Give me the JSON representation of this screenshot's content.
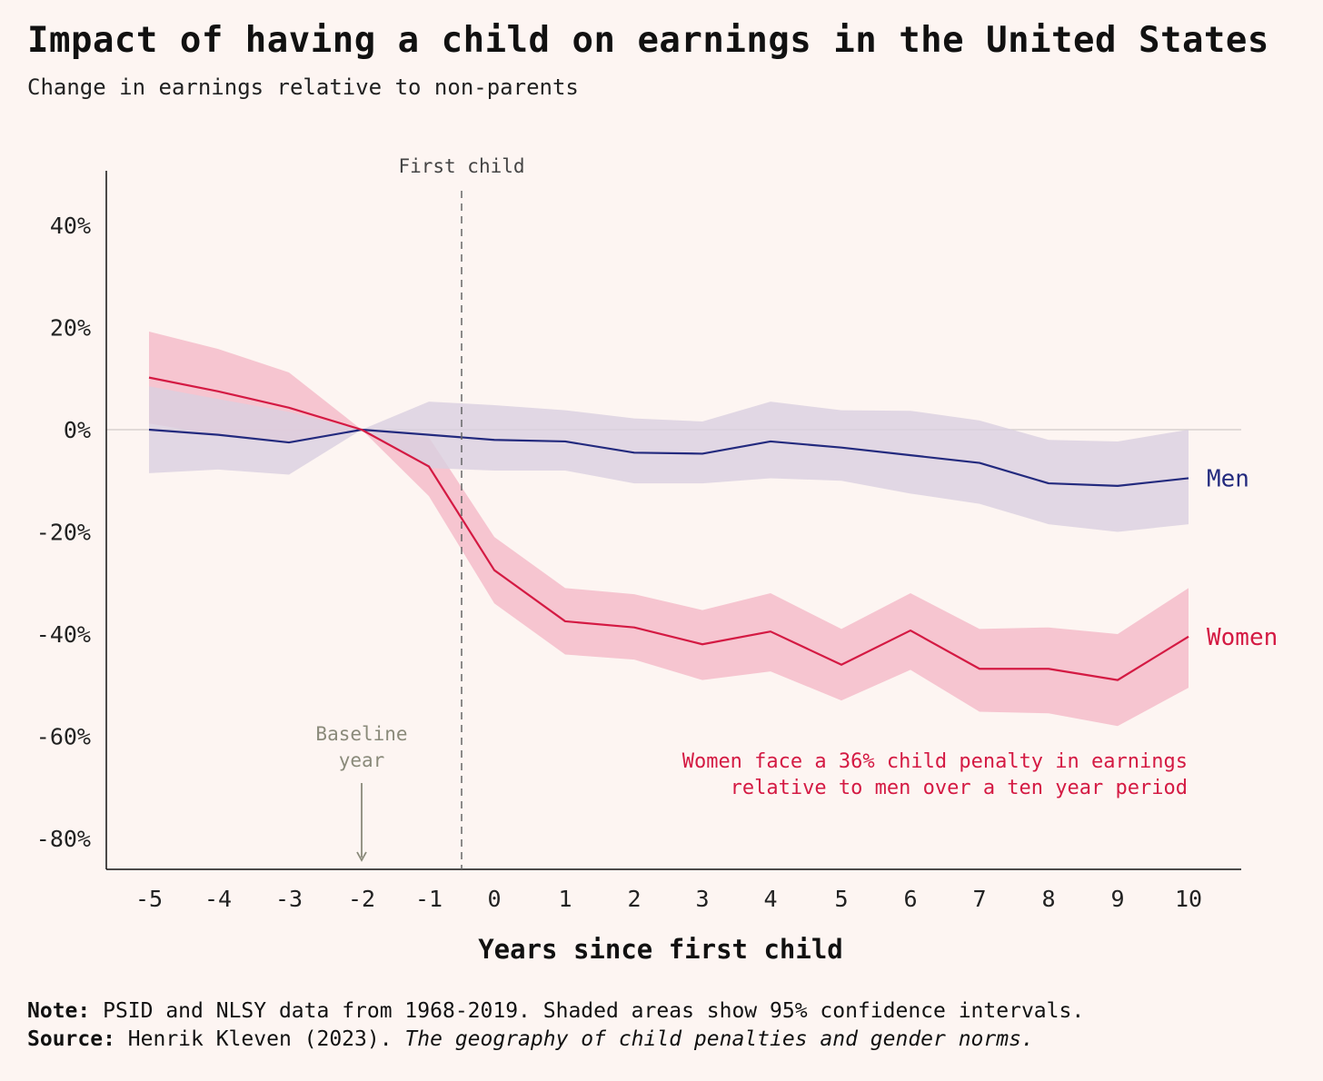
{
  "title": "Impact of having a child on earnings in the United States",
  "subtitle": "Change in earnings relative to non-parents",
  "colors": {
    "background": "#fdf5f2",
    "men_line": "#232a7e",
    "men_band": "#d9cfe0",
    "women_line": "#d41a43",
    "women_band": "#f6c2cd",
    "annotation_gray": "#8a8a7a"
  },
  "chart_data": {
    "type": "line",
    "xlabel": "Years since first child",
    "ylabel": "",
    "x": [
      -5,
      -4,
      -3,
      -2,
      -1,
      0,
      1,
      2,
      3,
      4,
      5,
      6,
      7,
      8,
      9,
      10
    ],
    "xticks": [
      "-5",
      "-4",
      "-3",
      "-2",
      "-1",
      "0",
      "1",
      "2",
      "3",
      "4",
      "5",
      "6",
      "7",
      "8",
      "9",
      "10"
    ],
    "yticks": [
      40,
      20,
      0,
      -20,
      -40,
      -60,
      -80
    ],
    "ytick_labels": [
      "40%",
      "20%",
      "0%",
      "-20%",
      "-40%",
      "-60%",
      "-80%"
    ],
    "ylim": [
      -85,
      50
    ],
    "series": [
      {
        "name": "Men",
        "values": [
          0,
          -1,
          -2.5,
          0,
          -1,
          -2,
          -2.3,
          -4.5,
          -4.7,
          -2.3,
          -3.5,
          -5,
          -6.5,
          -10.5,
          -11,
          -9.5
        ],
        "upper": [
          8.5,
          6,
          3.5,
          0,
          5.5,
          4.8,
          3.8,
          2.2,
          1.6,
          5.5,
          3.8,
          3.7,
          1.8,
          -2,
          -2.3,
          0
        ],
        "lower": [
          -8.5,
          -7.8,
          -8.8,
          0,
          -7.5,
          -8,
          -8,
          -10.5,
          -10.5,
          -9.5,
          -10,
          -12.5,
          -14.5,
          -18.5,
          -20,
          -18.5
        ]
      },
      {
        "name": "Women",
        "values": [
          10.2,
          7.5,
          4.3,
          0,
          -7.2,
          -27.5,
          -37.5,
          -38.7,
          -42,
          -39.5,
          -46,
          -39.3,
          -46.8,
          -46.8,
          -49,
          -40.5
        ],
        "upper": [
          19.2,
          15.8,
          11.2,
          0,
          -1.5,
          -21,
          -31,
          -32.2,
          -35.3,
          -32,
          -39,
          -32,
          -39,
          -38.7,
          -40,
          -31
        ],
        "lower": [
          1.2,
          -1,
          -2.5,
          0,
          -13,
          -34,
          -44,
          -45,
          -49,
          -47.3,
          -53,
          -47,
          -55.2,
          -55.5,
          -58,
          -50.5
        ]
      }
    ],
    "annotations": {
      "first_child_label": "First child",
      "first_child_x": -0.5,
      "baseline_label_line1": "Baseline",
      "baseline_label_line2": "year",
      "baseline_x": -2,
      "penalty_line1": "Women face a 36% child penalty in earnings",
      "penalty_line2": "relative to men over a ten year period"
    }
  },
  "footer": {
    "note_label": "Note:",
    "note_text": " PSID and NLSY data from 1968-2019. Shaded areas show 95% confidence intervals.",
    "source_label": "Source:",
    "source_text": " Henrik Kleven (2023). ",
    "source_title": "The geography of child penalties and gender norms."
  }
}
